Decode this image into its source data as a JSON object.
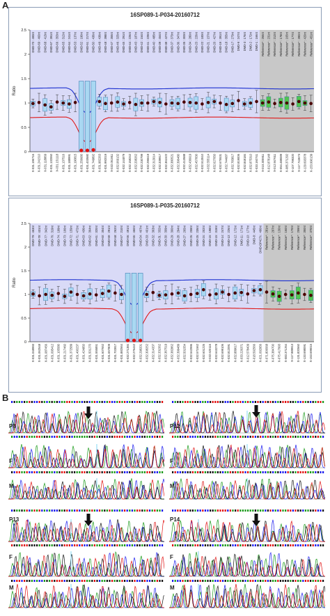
{
  "figure": {
    "panel_a_label": "A",
    "panel_b_label": "B"
  },
  "chart_data": [
    {
      "type": "box",
      "title": "16SP089-1-P034-20160712",
      "ylabel": "Ratio",
      "ylim": [
        0,
        2.5
      ],
      "yticks": [
        "0",
        "0.5",
        "1",
        "1.5",
        "2",
        "2.5"
      ],
      "upper_threshold": 1.3,
      "lower_threshold": 0.7,
      "grid": false,
      "probe_labels": [
        "DMD-70 : 493nt",
        "DMD-69 : 460nt",
        "DMD-68 : 413nt",
        "DMD-67 : 391nt",
        "DMD-66 : 353nt",
        "DMD-65 : 312nt",
        "DMD-64 : 241nt",
        "DMD-53 : 137nt",
        "DMD-52 : 190nt",
        "DMD-51 : 217nt",
        "DMD-50 : 436nt",
        "DMD-49 : 436nt",
        "DMD-48 : 398nt",
        "DMD-47 : 355nt",
        "DMD-46 : 325nt",
        "DMD-45 : 291nt",
        "DMD-44 : 226nt",
        "DMD-43 : 187nt",
        "DMD-42 : 154nt",
        "DMD-41 : 229nt",
        "DMD-40 : 485nt",
        "DMD-39 : 454nt",
        "DMD-38 : 427nt",
        "DMD-37 : 373nt",
        "DMD-36 : 347nt",
        "DMD-35 : 303nt",
        "DMD-34 : 280nt",
        "DMD-23 : 226nt",
        "DMD-22 : 183nt",
        "DMD-21 : 157nt",
        "DMD-20 : 427nt",
        "DMD-19 : 391nt",
        "DMD-18 : 355nt",
        "DMD-17 : 273nt",
        "DMD-9 : 247nt",
        "DMD-3 : 175nt",
        "DMD-2 : 172nt",
        "DMD-1 : 166nt",
        "Reference* : 265nt",
        "Reference* : 231nt",
        "Reference* : 212nt",
        "Reference* : 178nt",
        "Reference* : 165nt",
        "Reference* : 177nt",
        "Reference* : 390nt",
        "Reference* : 420nt",
        "Reference* : 451nt"
      ],
      "coordinate_labels": [
        "X-031.196716",
        "X-031.241510",
        "X-031.118869",
        "X-031.132060",
        "X-031.151118",
        "X-031.137516",
        "X-031.188991",
        "X-031.190815",
        "X-031.256680",
        "X-031.403580",
        "X-031.749892",
        "X-031.982263",
        "X-031.992019",
        "X-032.051911",
        "X-032.069132",
        "X-032.144879",
        "X-032.158242",
        "X-032.208262",
        "X-032.230799",
        "X-032.296619",
        "X-032.313014",
        "X-032.339917",
        "X-032.361522",
        "X-032.380521",
        "X-032.396480",
        "X-032.413588",
        "X-032.436919",
        "X-032.457830",
        "X-032.513510",
        "X-032.555114",
        "X-032.627050",
        "X-032.675531",
        "X-032.744687",
        "X-032.783817",
        "X-032.819006",
        "X-032.848184",
        "X-032.875310",
        "X-033.160741",
        "X-010.305911",
        "X-012.878148",
        "X-012.947611",
        "X-054.488089",
        "X-085.371292",
        "X-107.799320",
        "X-117.743673",
        "X-129.693378",
        "X-153.990139"
      ],
      "ratios": [
        0.99,
        1.01,
        0.96,
        0.92,
        1.02,
        1.0,
        0.98,
        1.01,
        0.02,
        0.02,
        0.03,
        1.03,
        0.99,
        1.0,
        1.02,
        0.98,
        1.01,
        0.97,
        1.0,
        1.0,
        1.03,
        1.01,
        0.98,
        1.0,
        0.99,
        1.02,
        1.01,
        1.0,
        0.98,
        1.01,
        1.03,
        1.0,
        0.97,
        0.99,
        1.05,
        0.98,
        1.0,
        1.03,
        1.0,
        1.02,
        0.99,
        1.01,
        1.0,
        0.98,
        1.03,
        1.0,
        0.99
      ],
      "reference_start_index": 38
    },
    {
      "type": "box",
      "title": "16SP089-1-P035-20160712",
      "ylabel": "Ratio",
      "ylim": [
        0,
        2.5
      ],
      "yticks": [
        "0",
        "0.5",
        "1",
        "1.5",
        "2",
        "2.5"
      ],
      "upper_threshold": 1.3,
      "lower_threshold": 0.7,
      "grid": false,
      "probe_labels": [
        "DMD-79 : 463nt",
        "DMD-78 : 431nt",
        "DMD-77 : 342nt",
        "DMD-76 : 319nt",
        "DMD-74 : 199nt",
        "DMD-73 : 166nt",
        "DMD-72 : 159nt",
        "DMD-71 : 472nt",
        "DMD-63 : 436nt",
        "DMD-62 : 364nt",
        "DMD-61 : 320nt",
        "DMD-60 : 304nt",
        "DMD-59 : 291nt",
        "DMD-58 : 262nt",
        "DMD-57 : 210nt",
        "DMD-56 : 491nt",
        "DMD-55 : 460nt",
        "DMD-54 : 407nt",
        "DMD-33 : 401nt",
        "DMD-32 : 363nt",
        "DMD-31 : 332nt",
        "DMD-30 : 309nt",
        "DMD-29 : 300nt",
        "DMD-28 : 294nt",
        "DMD-27 : 265nt",
        "DMD-26 : 208nt",
        "DMD-25 : 235nt",
        "DMD-24 : 202nt",
        "DMD-16 : 198nt",
        "DMD-15 : 319nt",
        "DMD-14 : 247nt",
        "DMD-13 : 226nt",
        "DMD-12 : 172nt",
        "DMD-11 : 171nt",
        "DMD-10 : 177nt",
        "DMD-8 : 445nt",
        "DMD-DP427c : 490nt",
        "Reference* : 281nt",
        "Reference* : 297nt",
        "Reference* : 130nt",
        "Reference* : 160nt",
        "Reference* : 170nt",
        "Reference* : 259nt",
        "Reference* : 350nt",
        "Reference* : 370nt"
      ],
      "coordinate_labels": [
        "X-031.048993",
        "X-031.062548",
        "X-031.087456",
        "X-031.095412",
        "X-031.105580",
        "X-031.217460",
        "X-031.372589",
        "X-031.400237",
        "X-031.424850",
        "X-031.501270",
        "X-031.555851",
        "X-031.607652",
        "X-031.657809",
        "X-031.702817",
        "X-031.882564",
        "X-032.271384",
        "X-032.276442",
        "X-032.298201",
        "X-032.308252",
        "X-032.314337",
        "X-032.331562",
        "X-032.367519",
        "X-032.382862",
        "X-032.399489",
        "X-032.501554",
        "X-032.542996",
        "X-032.571562",
        "X-032.601225",
        "X-032.620116",
        "X-032.643278",
        "X-032.699106",
        "X-032.812091",
        "X-032.889617",
        "X-033.226371",
        "X-012.578409",
        "X-018.592566",
        "X-021.092956",
        "X-071.806568",
        "X-075.384700",
        "X-075.417993",
        "X-083.371264",
        "X-117.989913",
        "X-131.820560",
        "X-133.698091",
        "X-153.699015"
      ],
      "ratios": [
        1.01,
        0.97,
        1.0,
        0.98,
        1.02,
        0.96,
        1.05,
        1.0,
        0.97,
        1.01,
        0.99,
        1.02,
        1.07,
        1.03,
        1.0,
        0.02,
        0.02,
        0.02,
        1.0,
        1.04,
        0.98,
        0.99,
        1.01,
        1.03,
        0.97,
        1.0,
        1.02,
        1.1,
        0.99,
        1.01,
        1.05,
        1.0,
        1.03,
        1.04,
        1.01,
        1.08,
        1.1,
        1.05,
        1.01,
        0.96,
        1.0,
        0.99,
        1.03,
        1.0,
        0.98
      ],
      "reference_start_index": 37
    }
  ],
  "sequencing": {
    "panels": [
      {
        "label": "P8",
        "rows": [
          "P8",
          "F",
          "M"
        ],
        "arrow": true
      },
      {
        "label": "P12",
        "rows": [
          "P12",
          "F",
          "M"
        ],
        "arrow": true
      },
      {
        "label": "P13",
        "rows": [
          "P13",
          "F",
          "M"
        ],
        "arrow": true
      },
      {
        "label": "P14",
        "rows": [
          "P14",
          "F",
          "M"
        ],
        "arrow": true
      }
    ],
    "trace_colors": {
      "A": "#1a9a1a",
      "C": "#1a1aee",
      "G": "#111111",
      "T": "#e01010"
    },
    "base_strip_colors": [
      "#1a9a1a",
      "#1a1aee",
      "#111111",
      "#e01010"
    ]
  },
  "colors": {
    "plot_background": "#d9daf7",
    "reference_background": "#c8c8c8",
    "upper_line": "#1b2fd0",
    "lower_line": "#e01818",
    "box_fill": "#a9d8f2",
    "reference_box_fill": "#52c552",
    "point": "#4a0000",
    "deletion_marker": "#e01010"
  }
}
